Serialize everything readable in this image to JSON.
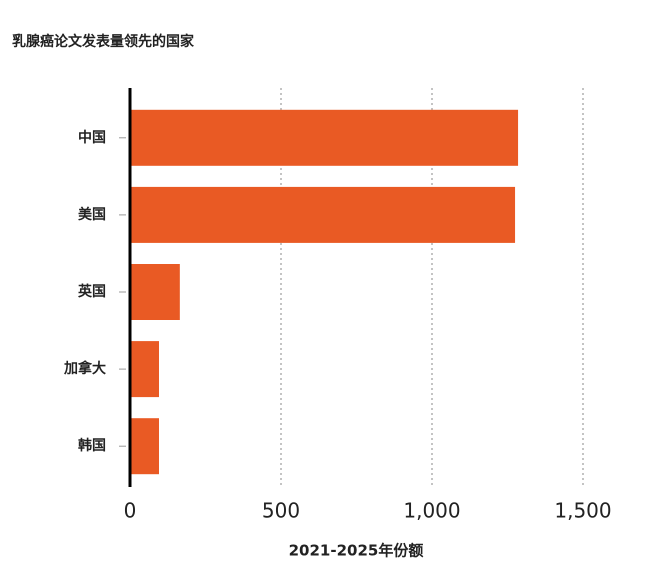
{
  "chart_data": {
    "type": "bar",
    "orientation": "horizontal",
    "title": "乳腺癌论文发表量领先的国家",
    "x_label": "2021-2025年份额",
    "categories": [
      "中国",
      "美国",
      "英国",
      "加拿大",
      "韩国"
    ],
    "values": [
      1285,
      1275,
      165,
      96,
      96
    ],
    "color": "#e95a24",
    "xlim": [
      0,
      1500
    ],
    "xticks": [
      0,
      500,
      {
        "value": 1000,
        "label": "1,000"
      },
      {
        "value": 1500,
        "label": "1,500"
      }
    ],
    "grid": true
  }
}
